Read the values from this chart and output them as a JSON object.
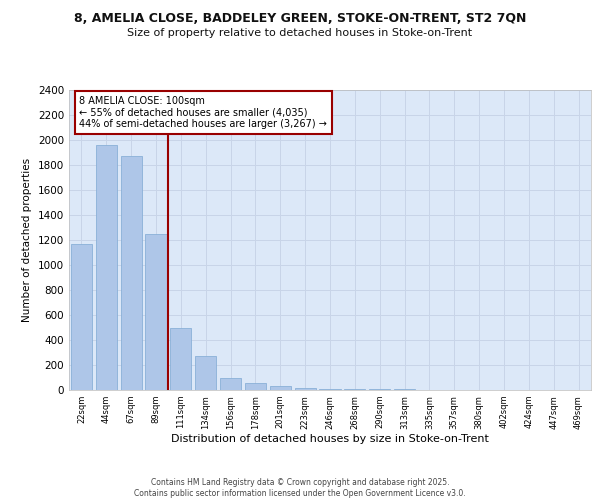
{
  "title_line1": "8, AMELIA CLOSE, BADDELEY GREEN, STOKE-ON-TRENT, ST2 7QN",
  "title_line2": "Size of property relative to detached houses in Stoke-on-Trent",
  "xlabel": "Distribution of detached houses by size in Stoke-on-Trent",
  "ylabel": "Number of detached properties",
  "categories": [
    "22sqm",
    "44sqm",
    "67sqm",
    "89sqm",
    "111sqm",
    "134sqm",
    "156sqm",
    "178sqm",
    "201sqm",
    "223sqm",
    "246sqm",
    "268sqm",
    "290sqm",
    "313sqm",
    "335sqm",
    "357sqm",
    "380sqm",
    "402sqm",
    "424sqm",
    "447sqm",
    "469sqm"
  ],
  "values": [
    1170,
    1960,
    1870,
    1250,
    500,
    270,
    100,
    55,
    30,
    18,
    12,
    8,
    6,
    5,
    4,
    3,
    3,
    2,
    2,
    1,
    1
  ],
  "bar_color": "#aec6e8",
  "bar_edge_color": "#8ab0d8",
  "grid_color": "#c8d4e8",
  "background_color": "#dce8f8",
  "vline_color": "#990000",
  "annotation_text": "8 AMELIA CLOSE: 100sqm\n← 55% of detached houses are smaller (4,035)\n44% of semi-detached houses are larger (3,267) →",
  "ylim": [
    0,
    2400
  ],
  "yticks": [
    0,
    200,
    400,
    600,
    800,
    1000,
    1200,
    1400,
    1600,
    1800,
    2000,
    2200,
    2400
  ],
  "footer_line1": "Contains HM Land Registry data © Crown copyright and database right 2025.",
  "footer_line2": "Contains public sector information licensed under the Open Government Licence v3.0."
}
